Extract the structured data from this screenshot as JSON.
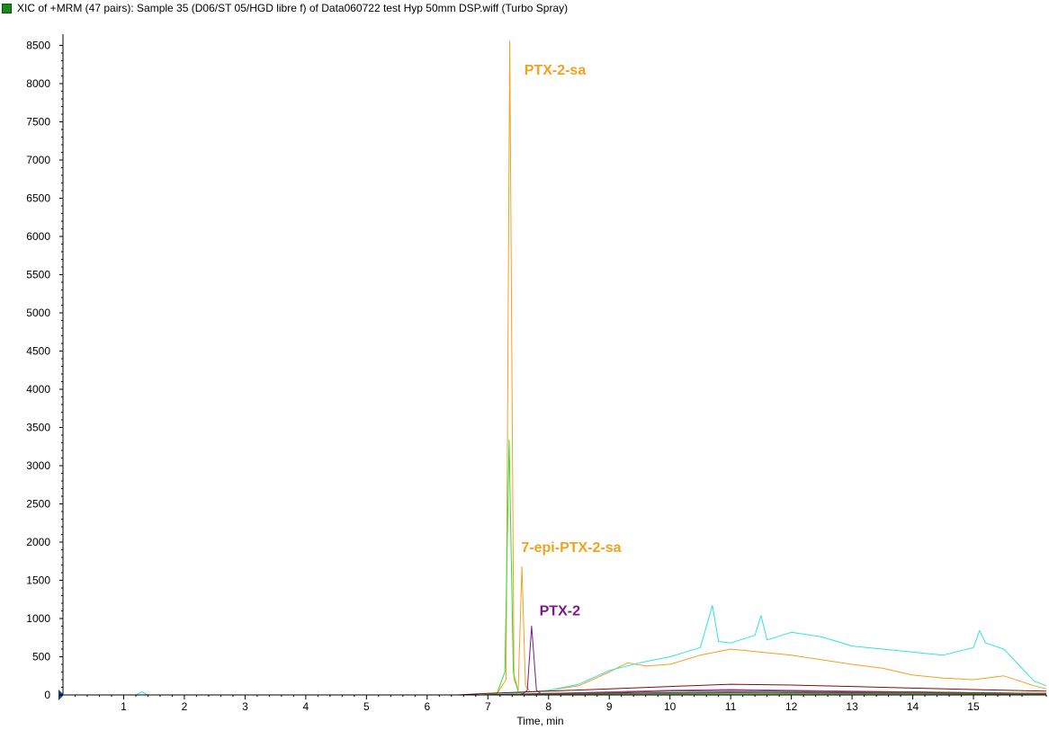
{
  "header": {
    "title": "XIC of +MRM (47 pairs):  Sample 35 (D06/ST 05/HGD libre f) of Data060722 test Hyp  50mm DSP.wiff (Turbo Spray)",
    "legend_color": "#1a8a1a"
  },
  "chart_data": {
    "type": "line",
    "xlabel": "Time, min",
    "ylabel": "",
    "xlim": [
      0.0,
      16.2
    ],
    "ylim": [
      0,
      8600
    ],
    "x_ticks": [
      1,
      2,
      3,
      4,
      5,
      6,
      7,
      8,
      9,
      10,
      11,
      12,
      13,
      14,
      15
    ],
    "y_ticks": [
      0,
      500,
      1000,
      1500,
      2000,
      2500,
      3000,
      3500,
      4000,
      4500,
      5000,
      5500,
      6000,
      6500,
      7000,
      7500,
      8000,
      8500
    ],
    "grid": false,
    "series": [
      {
        "color": "#f5a020",
        "points": [
          [
            0,
            0
          ],
          [
            6.9,
            0
          ],
          [
            7.15,
            15
          ],
          [
            7.3,
            200
          ],
          [
            7.36,
            8560
          ],
          [
            7.43,
            200
          ],
          [
            7.5,
            60
          ],
          [
            7.56,
            1680
          ],
          [
            7.62,
            120
          ],
          [
            7.7,
            40
          ],
          [
            8.0,
            60
          ],
          [
            8.5,
            120
          ],
          [
            9.0,
            300
          ],
          [
            9.3,
            420
          ],
          [
            9.6,
            380
          ],
          [
            10.0,
            400
          ],
          [
            10.5,
            520
          ],
          [
            11.0,
            600
          ],
          [
            11.5,
            560
          ],
          [
            12.0,
            520
          ],
          [
            12.5,
            460
          ],
          [
            13.0,
            400
          ],
          [
            13.5,
            350
          ],
          [
            14.0,
            260
          ],
          [
            14.5,
            220
          ],
          [
            15.0,
            200
          ],
          [
            15.5,
            250
          ],
          [
            16.0,
            120
          ],
          [
            16.2,
            80
          ]
        ]
      },
      {
        "color": "#33e0e8",
        "points": [
          [
            0,
            0
          ],
          [
            1.2,
            0
          ],
          [
            1.3,
            40
          ],
          [
            1.4,
            0
          ],
          [
            7.0,
            0
          ],
          [
            7.5,
            30
          ],
          [
            8.0,
            60
          ],
          [
            8.5,
            140
          ],
          [
            9.0,
            320
          ],
          [
            9.5,
            420
          ],
          [
            10.0,
            500
          ],
          [
            10.5,
            620
          ],
          [
            10.7,
            1170
          ],
          [
            10.8,
            700
          ],
          [
            11.0,
            680
          ],
          [
            11.4,
            780
          ],
          [
            11.5,
            1040
          ],
          [
            11.6,
            720
          ],
          [
            12.0,
            820
          ],
          [
            12.5,
            760
          ],
          [
            13.0,
            640
          ],
          [
            13.5,
            600
          ],
          [
            14.0,
            560
          ],
          [
            14.5,
            520
          ],
          [
            15.0,
            620
          ],
          [
            15.1,
            840
          ],
          [
            15.2,
            680
          ],
          [
            15.5,
            600
          ],
          [
            16.0,
            180
          ],
          [
            16.2,
            120
          ]
        ]
      },
      {
        "color": "#33dd33",
        "points": [
          [
            0,
            0
          ],
          [
            6.9,
            0
          ],
          [
            7.15,
            20
          ],
          [
            7.28,
            300
          ],
          [
            7.35,
            3340
          ],
          [
            7.42,
            300
          ],
          [
            7.5,
            40
          ],
          [
            7.6,
            10
          ],
          [
            8.0,
            10
          ],
          [
            16.2,
            10
          ]
        ]
      },
      {
        "color": "#7a1a8a",
        "points": [
          [
            0,
            0
          ],
          [
            7.55,
            0
          ],
          [
            7.65,
            60
          ],
          [
            7.72,
            900
          ],
          [
            7.8,
            60
          ],
          [
            7.9,
            0
          ],
          [
            9.0,
            20
          ],
          [
            11.0,
            40
          ],
          [
            13.0,
            30
          ],
          [
            16.2,
            20
          ]
        ]
      },
      {
        "color": "#8b0a0a",
        "points": [
          [
            0,
            0
          ],
          [
            6.5,
            0
          ],
          [
            7.0,
            20
          ],
          [
            8.0,
            50
          ],
          [
            9.0,
            80
          ],
          [
            10.0,
            110
          ],
          [
            11.0,
            140
          ],
          [
            12.0,
            130
          ],
          [
            13.0,
            110
          ],
          [
            14.0,
            90
          ],
          [
            15.0,
            70
          ],
          [
            16.2,
            50
          ]
        ]
      },
      {
        "color": "#e020c0",
        "points": [
          [
            0,
            0
          ],
          [
            7.0,
            0
          ],
          [
            8.0,
            20
          ],
          [
            9.0,
            40
          ],
          [
            10.0,
            60
          ],
          [
            11.0,
            70
          ],
          [
            12.0,
            60
          ],
          [
            13.0,
            50
          ],
          [
            14.0,
            40
          ],
          [
            15.0,
            30
          ],
          [
            16.2,
            20
          ]
        ]
      },
      {
        "color": "#1c6b1c",
        "points": [
          [
            0,
            0
          ],
          [
            7.0,
            0
          ],
          [
            8.0,
            20
          ],
          [
            9.0,
            30
          ],
          [
            10.0,
            50
          ],
          [
            11.0,
            60
          ],
          [
            12.0,
            50
          ],
          [
            13.0,
            40
          ],
          [
            14.0,
            40
          ],
          [
            15.0,
            30
          ],
          [
            16.2,
            20
          ]
        ]
      },
      {
        "color": "#3a3a8a",
        "points": [
          [
            0,
            0
          ],
          [
            7.0,
            0
          ],
          [
            9.0,
            20
          ],
          [
            11.0,
            30
          ],
          [
            13.0,
            20
          ],
          [
            16.2,
            10
          ]
        ]
      },
      {
        "color": "#9a6a30",
        "points": [
          [
            0,
            0
          ],
          [
            7.0,
            0
          ],
          [
            9.0,
            15
          ],
          [
            11.0,
            25
          ],
          [
            13.0,
            20
          ],
          [
            16.2,
            10
          ]
        ]
      }
    ],
    "annotations": [
      {
        "text": "PTX-2-sa",
        "color": "#f5a020",
        "x": 7.6,
        "y": 8120
      },
      {
        "text": "7-epi-PTX-2-sa",
        "color": "#f5a020",
        "x": 7.55,
        "y": 1870
      },
      {
        "text": "PTX-2",
        "color": "#7a1a8a",
        "x": 7.85,
        "y": 1040
      }
    ]
  }
}
